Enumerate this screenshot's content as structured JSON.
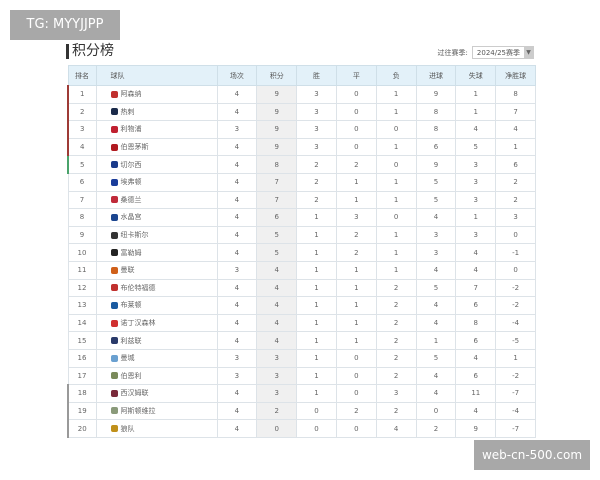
{
  "watermarks": {
    "top_left": "TG: MYYJJPP",
    "bottom_right": "web-cn-500.com"
  },
  "title": "积分榜",
  "season": {
    "label": "过往赛季:",
    "selected": "2024/25赛季"
  },
  "columns": [
    "排名",
    "球队",
    "场次",
    "积分",
    "胜",
    "平",
    "负",
    "进球",
    "失球",
    "净胜球"
  ],
  "zone_colors": {
    "champions": "#9e3b36",
    "europa": "#4aa36b",
    "relegation": "#999999"
  },
  "rows": [
    [
      "1",
      "阿森纳",
      "4",
      "9",
      "3",
      "0",
      "1",
      "9",
      "1",
      "8",
      "champions",
      "#c0302e"
    ],
    [
      "2",
      "热刺",
      "4",
      "9",
      "3",
      "0",
      "1",
      "8",
      "1",
      "7",
      "champions",
      "#1a2a4a"
    ],
    [
      "3",
      "利物浦",
      "3",
      "9",
      "3",
      "0",
      "0",
      "8",
      "4",
      "4",
      "champions",
      "#c02030"
    ],
    [
      "4",
      "伯恩茅斯",
      "4",
      "9",
      "3",
      "0",
      "1",
      "6",
      "5",
      "1",
      "champions",
      "#b01a20"
    ],
    [
      "5",
      "切尔西",
      "4",
      "8",
      "2",
      "2",
      "0",
      "9",
      "3",
      "6",
      "europa",
      "#1a3a8a"
    ],
    [
      "6",
      "埃弗顿",
      "4",
      "7",
      "2",
      "1",
      "1",
      "5",
      "3",
      "2",
      "",
      "#1a3c9a"
    ],
    [
      "7",
      "桑德兰",
      "4",
      "7",
      "2",
      "1",
      "1",
      "5",
      "3",
      "2",
      "",
      "#c02a3a"
    ],
    [
      "8",
      "水晶宫",
      "4",
      "6",
      "1",
      "3",
      "0",
      "4",
      "1",
      "3",
      "",
      "#1b458f"
    ],
    [
      "9",
      "纽卡斯尔",
      "4",
      "5",
      "1",
      "2",
      "1",
      "3",
      "3",
      "0",
      "",
      "#333333"
    ],
    [
      "10",
      "富勒姆",
      "4",
      "5",
      "1",
      "2",
      "1",
      "3",
      "4",
      "-1",
      "",
      "#222222"
    ],
    [
      "11",
      "曼联",
      "3",
      "4",
      "1",
      "1",
      "1",
      "4",
      "4",
      "0",
      "",
      "#d0601a"
    ],
    [
      "12",
      "布伦特福德",
      "4",
      "4",
      "1",
      "1",
      "2",
      "5",
      "7",
      "-2",
      "",
      "#c0302e"
    ],
    [
      "13",
      "布莱顿",
      "4",
      "4",
      "1",
      "1",
      "2",
      "4",
      "6",
      "-2",
      "",
      "#1a5aa0"
    ],
    [
      "14",
      "诺丁汉森林",
      "4",
      "4",
      "1",
      "1",
      "2",
      "4",
      "8",
      "-4",
      "",
      "#d03030"
    ],
    [
      "15",
      "利兹联",
      "4",
      "4",
      "1",
      "1",
      "2",
      "1",
      "6",
      "-5",
      "",
      "#2a3a6a"
    ],
    [
      "16",
      "曼城",
      "3",
      "3",
      "1",
      "0",
      "2",
      "5",
      "4",
      "1",
      "",
      "#6aa0d0"
    ],
    [
      "17",
      "伯恩利",
      "3",
      "3",
      "1",
      "0",
      "2",
      "4",
      "6",
      "-2",
      "",
      "#7a8a5a"
    ],
    [
      "18",
      "西汉姆联",
      "4",
      "3",
      "1",
      "0",
      "3",
      "4",
      "11",
      "-7",
      "relegation",
      "#7a2a3a"
    ],
    [
      "19",
      "阿斯顿维拉",
      "4",
      "2",
      "0",
      "2",
      "2",
      "0",
      "4",
      "-4",
      "relegation",
      "#8a9a7a"
    ],
    [
      "20",
      "狼队",
      "4",
      "0",
      "0",
      "0",
      "4",
      "2",
      "9",
      "-7",
      "relegation",
      "#c0901a"
    ]
  ]
}
